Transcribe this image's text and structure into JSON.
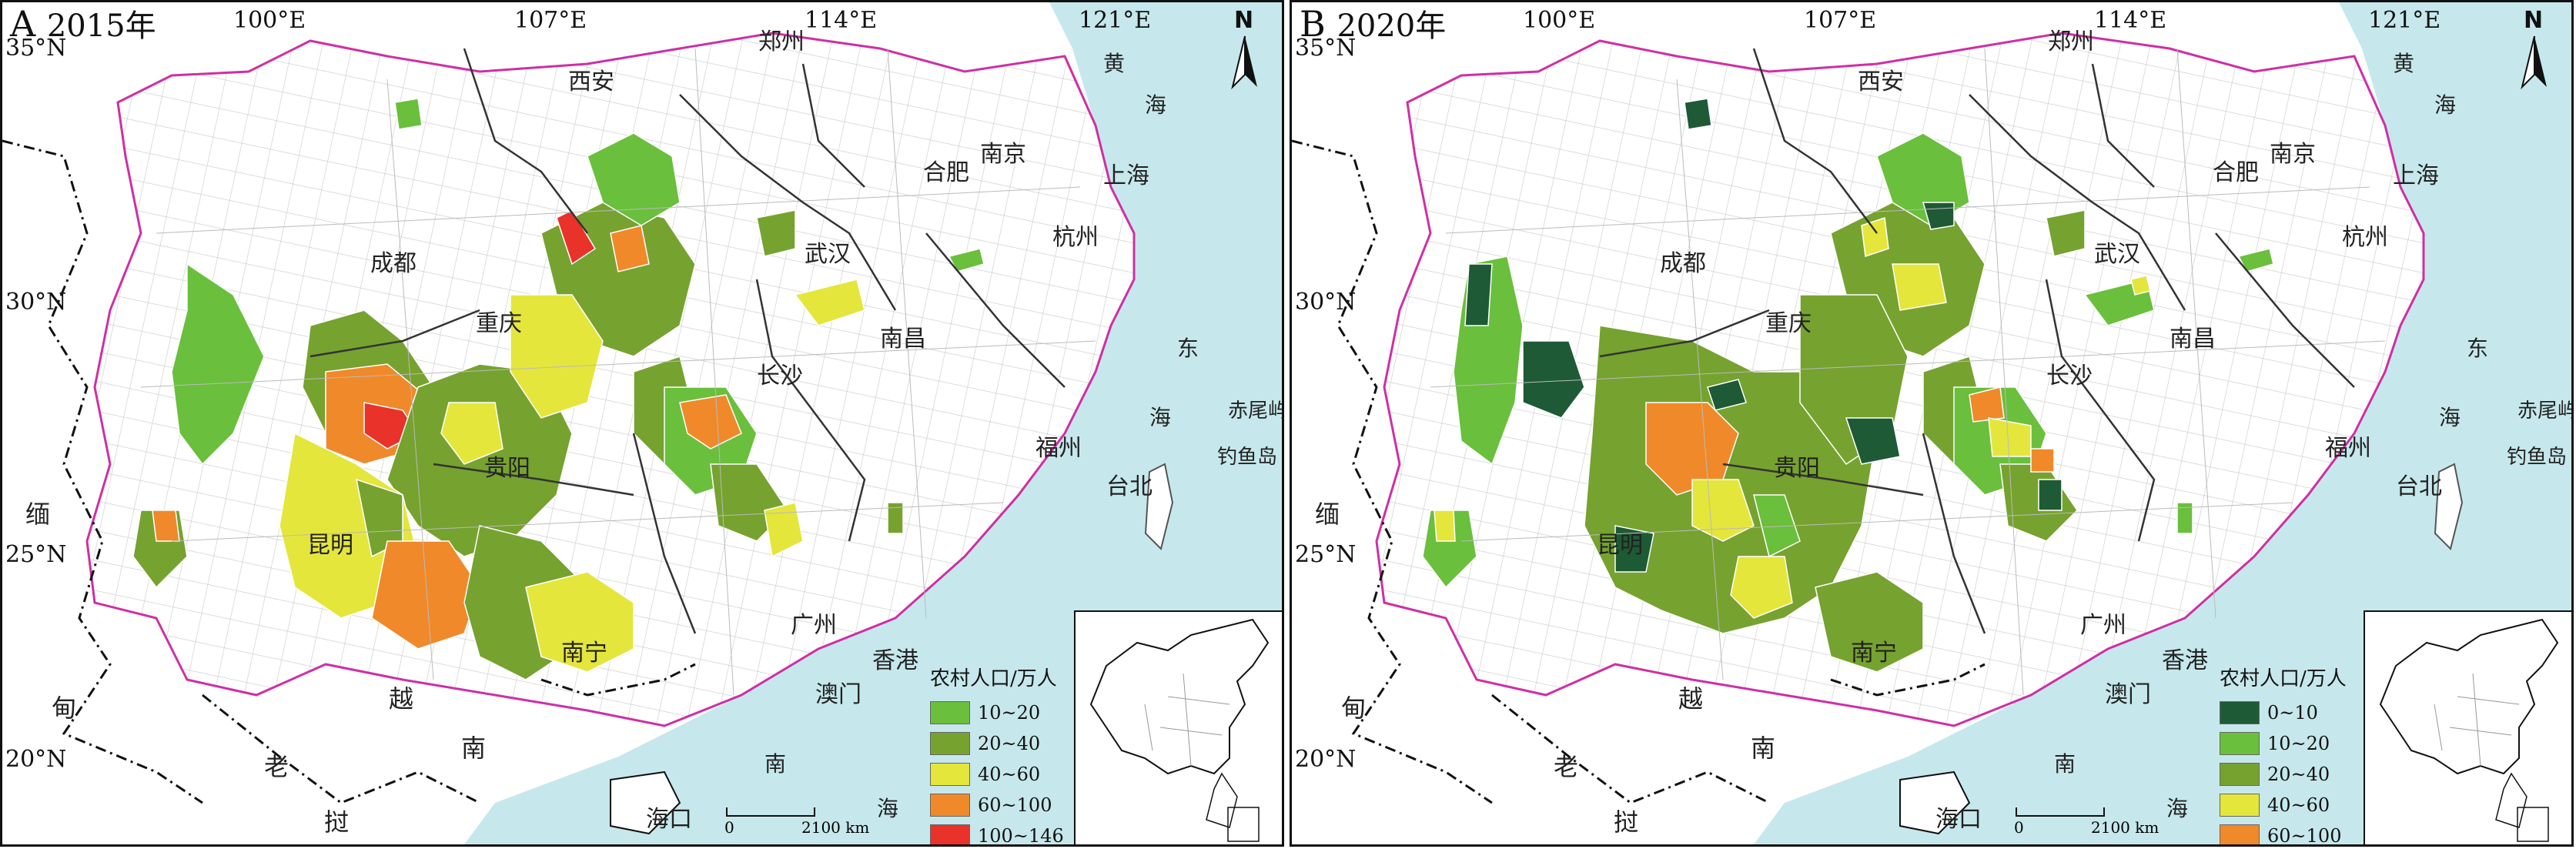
{
  "panels": [
    {
      "id": "A",
      "letter": "A",
      "year": "2015年",
      "legend_title": "农村人口/万人",
      "legend": [
        {
          "label": "10~20",
          "color": "#6abf3c"
        },
        {
          "label": "20~40",
          "color": "#76a22f"
        },
        {
          "label": "40~60",
          "color": "#e4e63c"
        },
        {
          "label": "60~100",
          "color": "#f0892a"
        },
        {
          "label": "100~146",
          "color": "#e8322a"
        }
      ]
    },
    {
      "id": "B",
      "letter": "B",
      "year": "2020年",
      "legend_title": "农村人口/万人",
      "legend": [
        {
          "label": "0~10",
          "color": "#1e5a35"
        },
        {
          "label": "10~20",
          "color": "#6abf3c"
        },
        {
          "label": "20~40",
          "color": "#76a22f"
        },
        {
          "label": "40~60",
          "color": "#e4e63c"
        },
        {
          "label": "60~100",
          "color": "#f0892a"
        }
      ]
    }
  ],
  "longitudes": [
    "100°E",
    "107°E",
    "114°E",
    "121°E"
  ],
  "latitudes": [
    "35°N",
    "30°N",
    "25°N",
    "20°N"
  ],
  "cities": [
    "西安",
    "郑州",
    "成都",
    "重庆",
    "武汉",
    "合肥",
    "南京",
    "上海",
    "杭州",
    "长沙",
    "南昌",
    "贵阳",
    "昆明",
    "福州",
    "台北",
    "南宁",
    "广州",
    "香港",
    "澳门",
    "海口"
  ],
  "countries": [
    "缅",
    "甸",
    "老",
    "挝",
    "越",
    "南"
  ],
  "seas": [
    "黄",
    "海",
    "东",
    "海",
    "南",
    "海"
  ],
  "islands": [
    "赤尾屿",
    "钓鱼岛"
  ],
  "north_label": "N",
  "scale": {
    "zero": "0",
    "distance": "2100 km"
  },
  "colors": {
    "sea": "#c6e8ec",
    "boundary": "#cf2fa4",
    "county_line": "#bbbbbb"
  }
}
